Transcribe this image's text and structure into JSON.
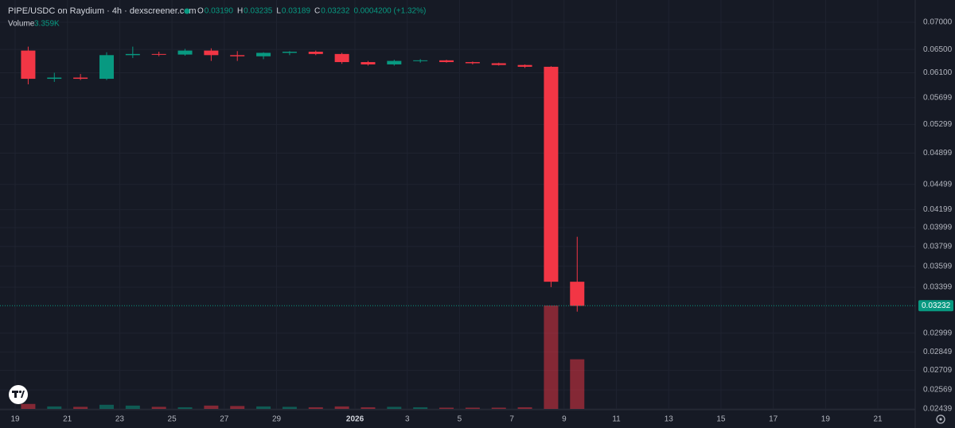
{
  "chart_data": {
    "type": "candlestick",
    "title": "PIPE/USDC on Raydium · 4h · dexscreener.com",
    "legend_values": [
      {
        "label": "O",
        "value": "0.03190"
      },
      {
        "label": "H",
        "value": "0.03235"
      },
      {
        "label": "L",
        "value": "0.03189"
      },
      {
        "label": "C",
        "value": "0.03232"
      }
    ],
    "change": "0.0004200 (+1.32%)",
    "volume_label": "Volume",
    "volume_value": "3.359K",
    "categories": [
      "19",
      null,
      "21",
      null,
      "23",
      null,
      "25",
      null,
      "27",
      null,
      "29",
      null,
      null,
      "2026",
      null,
      "3",
      null,
      "5",
      null,
      "7",
      null,
      "9",
      null,
      "11",
      null,
      "13",
      null,
      "15",
      null,
      "17",
      null,
      "19",
      null,
      "21"
    ],
    "open": [
      0.0648,
      0.06,
      0.0602,
      0.06,
      0.064,
      0.0642,
      0.0641,
      0.0648,
      0.064,
      0.0638,
      0.0644,
      0.0646,
      0.0642,
      0.0628,
      0.0624,
      0.063,
      0.0631,
      0.0628,
      0.0626,
      0.0623,
      0.062,
      0.0345,
      null,
      null,
      null,
      null,
      null,
      null,
      null,
      null,
      null,
      null,
      null,
      null
    ],
    "high": [
      0.0655,
      0.061,
      0.0608,
      0.0645,
      0.0655,
      0.0646,
      0.0651,
      0.0652,
      0.0647,
      0.0645,
      0.0647,
      0.0648,
      0.0644,
      0.063,
      0.0632,
      0.0633,
      0.0632,
      0.0629,
      0.0627,
      0.0624,
      0.0621,
      0.039,
      null,
      null,
      null,
      null,
      null,
      null,
      null,
      null,
      null,
      null,
      null,
      null
    ],
    "low": [
      0.0591,
      0.0595,
      0.0598,
      0.0598,
      0.0635,
      0.0638,
      0.0639,
      0.063,
      0.063,
      0.0633,
      0.064,
      0.064,
      0.0625,
      0.0622,
      0.0622,
      0.0627,
      0.0627,
      0.0624,
      0.0622,
      0.0618,
      0.034,
      0.0318,
      null,
      null,
      null,
      null,
      null,
      null,
      null,
      null,
      null,
      null,
      null,
      null
    ],
    "close": [
      0.06,
      0.0602,
      0.06,
      0.064,
      0.0642,
      0.0641,
      0.0648,
      0.064,
      0.0638,
      0.0644,
      0.0646,
      0.0642,
      0.0628,
      0.0624,
      0.063,
      0.0631,
      0.0628,
      0.0626,
      0.0623,
      0.062,
      0.0345,
      0.0323,
      null,
      null,
      null,
      null,
      null,
      null,
      null,
      null,
      null,
      null,
      null,
      null
    ],
    "volume": [
      6000,
      3000,
      2500,
      5000,
      4000,
      2500,
      2000,
      4000,
      3500,
      3000,
      2500,
      2000,
      3000,
      2000,
      2500,
      2000,
      1500,
      1500,
      1500,
      2000,
      125000,
      60000,
      null,
      null,
      null,
      null,
      null,
      null,
      null,
      null,
      null,
      null,
      null,
      null
    ],
    "up_color": "#089981",
    "down_color": "#f23645",
    "log_scale": true,
    "grid": true,
    "ylim": [
      0.02439,
      0.07
    ],
    "yticks": [
      {
        "value": 0.07,
        "label": "0.07000"
      },
      {
        "value": 0.065,
        "label": "0.06500"
      },
      {
        "value": 0.061,
        "label": "0.06100"
      },
      {
        "value": 0.05699,
        "label": "0.05699"
      },
      {
        "value": 0.05299,
        "label": "0.05299"
      },
      {
        "value": 0.04899,
        "label": "0.04899"
      },
      {
        "value": 0.04499,
        "label": "0.04499"
      },
      {
        "value": 0.04199,
        "label": "0.04199"
      },
      {
        "value": 0.03999,
        "label": "0.03999"
      },
      {
        "value": 0.03799,
        "label": "0.03799"
      },
      {
        "value": 0.03599,
        "label": "0.03599"
      },
      {
        "value": 0.03399,
        "label": "0.03399"
      },
      {
        "value": 0.02999,
        "label": "0.02999"
      },
      {
        "value": 0.02849,
        "label": "0.02849"
      },
      {
        "value": 0.02709,
        "label": "0.02709"
      },
      {
        "value": 0.02569,
        "label": "0.02569"
      },
      {
        "value": 0.02439,
        "label": "0.02439"
      }
    ],
    "last_price": 0.03232
  }
}
